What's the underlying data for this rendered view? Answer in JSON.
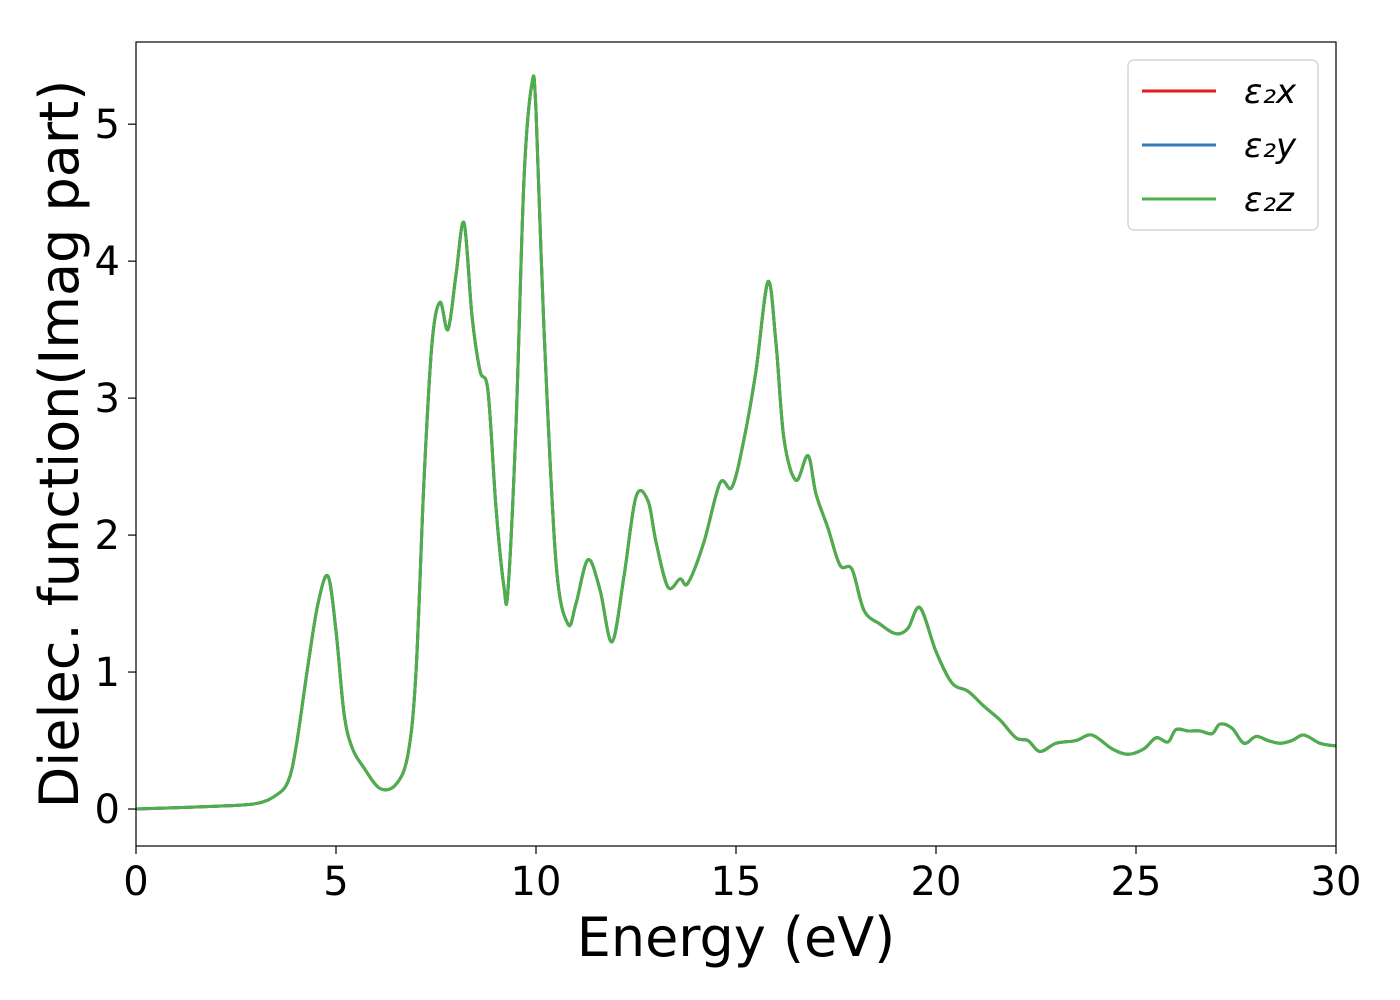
{
  "chart_data": {
    "type": "line",
    "xlabel": "Energy (eV)",
    "ylabel": "Dielec. function(Imag part)",
    "xlim": [
      0,
      30
    ],
    "ylim": [
      -0.27,
      5.6
    ],
    "x_ticks": [
      0,
      5,
      10,
      15,
      20,
      25,
      30
    ],
    "y_ticks": [
      0,
      1,
      2,
      3,
      4,
      5
    ],
    "grid": false,
    "legend_position": "top-right",
    "x": [
      0,
      2,
      3,
      3.5,
      3.8,
      4.0,
      4.3,
      4.55,
      4.8,
      5.0,
      5.2,
      5.4,
      5.7,
      6.1,
      6.5,
      6.8,
      7.0,
      7.2,
      7.4,
      7.6,
      7.8,
      8.0,
      8.2,
      8.4,
      8.6,
      8.8,
      9.0,
      9.2,
      9.3,
      9.5,
      9.7,
      9.9,
      10.0,
      10.2,
      10.5,
      10.8,
      11.0,
      11.3,
      11.6,
      11.9,
      12.2,
      12.5,
      12.8,
      13.0,
      13.3,
      13.6,
      13.8,
      14.2,
      14.6,
      14.9,
      15.2,
      15.5,
      15.8,
      16.0,
      16.2,
      16.5,
      16.8,
      17.0,
      17.3,
      17.6,
      17.9,
      18.2,
      18.6,
      19.0,
      19.3,
      19.6,
      20.0,
      20.4,
      20.8,
      21.2,
      21.6,
      22.0,
      22.3,
      22.6,
      23.0,
      23.5,
      23.9,
      24.4,
      24.8,
      25.2,
      25.5,
      25.8,
      26.0,
      26.3,
      26.6,
      26.9,
      27.1,
      27.4,
      27.7,
      28.0,
      28.3,
      28.6,
      28.9,
      29.2,
      29.6,
      30.0
    ],
    "series": [
      {
        "name": "ε₂x",
        "color": "#e41a1c",
        "values": [
          0.0,
          0.02,
          0.04,
          0.1,
          0.2,
          0.45,
          1.05,
          1.5,
          1.7,
          1.3,
          0.7,
          0.45,
          0.3,
          0.15,
          0.18,
          0.4,
          1.0,
          2.4,
          3.4,
          3.7,
          3.5,
          3.9,
          4.28,
          3.6,
          3.2,
          3.05,
          2.2,
          1.62,
          1.6,
          2.8,
          4.6,
          5.3,
          5.1,
          3.5,
          1.8,
          1.35,
          1.5,
          1.82,
          1.6,
          1.22,
          1.7,
          2.28,
          2.25,
          1.95,
          1.62,
          1.68,
          1.65,
          1.95,
          2.38,
          2.35,
          2.7,
          3.2,
          3.85,
          3.4,
          2.7,
          2.4,
          2.58,
          2.3,
          2.05,
          1.78,
          1.75,
          1.45,
          1.35,
          1.28,
          1.32,
          1.47,
          1.15,
          0.92,
          0.86,
          0.75,
          0.65,
          0.52,
          0.5,
          0.42,
          0.48,
          0.5,
          0.54,
          0.44,
          0.4,
          0.44,
          0.52,
          0.49,
          0.58,
          0.57,
          0.57,
          0.55,
          0.62,
          0.59,
          0.48,
          0.53,
          0.5,
          0.48,
          0.5,
          0.54,
          0.48,
          0.46
        ]
      },
      {
        "name": "ε₂y",
        "color": "#377eb8",
        "values": [
          0.0,
          0.02,
          0.04,
          0.1,
          0.2,
          0.45,
          1.05,
          1.5,
          1.7,
          1.3,
          0.7,
          0.45,
          0.3,
          0.15,
          0.18,
          0.4,
          1.0,
          2.4,
          3.4,
          3.7,
          3.5,
          3.9,
          4.28,
          3.6,
          3.2,
          3.05,
          2.2,
          1.62,
          1.6,
          2.8,
          4.6,
          5.3,
          5.1,
          3.5,
          1.8,
          1.35,
          1.5,
          1.82,
          1.6,
          1.22,
          1.7,
          2.28,
          2.25,
          1.95,
          1.62,
          1.68,
          1.65,
          1.95,
          2.38,
          2.35,
          2.7,
          3.2,
          3.85,
          3.4,
          2.7,
          2.4,
          2.58,
          2.3,
          2.05,
          1.78,
          1.75,
          1.45,
          1.35,
          1.28,
          1.32,
          1.47,
          1.15,
          0.92,
          0.86,
          0.75,
          0.65,
          0.52,
          0.5,
          0.42,
          0.48,
          0.5,
          0.54,
          0.44,
          0.4,
          0.44,
          0.52,
          0.49,
          0.58,
          0.57,
          0.57,
          0.55,
          0.62,
          0.59,
          0.48,
          0.53,
          0.5,
          0.48,
          0.5,
          0.54,
          0.48,
          0.46
        ]
      },
      {
        "name": "ε₂z",
        "color": "#4daf4a",
        "values": [
          0.0,
          0.02,
          0.04,
          0.1,
          0.2,
          0.45,
          1.05,
          1.5,
          1.7,
          1.3,
          0.7,
          0.45,
          0.3,
          0.15,
          0.18,
          0.4,
          1.0,
          2.4,
          3.4,
          3.7,
          3.5,
          3.9,
          4.28,
          3.6,
          3.2,
          3.05,
          2.2,
          1.62,
          1.6,
          2.8,
          4.6,
          5.3,
          5.1,
          3.5,
          1.8,
          1.35,
          1.5,
          1.82,
          1.6,
          1.22,
          1.7,
          2.28,
          2.25,
          1.95,
          1.62,
          1.68,
          1.65,
          1.95,
          2.38,
          2.35,
          2.7,
          3.2,
          3.85,
          3.4,
          2.7,
          2.4,
          2.58,
          2.3,
          2.05,
          1.78,
          1.75,
          1.45,
          1.35,
          1.28,
          1.32,
          1.47,
          1.15,
          0.92,
          0.86,
          0.75,
          0.65,
          0.52,
          0.5,
          0.42,
          0.48,
          0.5,
          0.54,
          0.44,
          0.4,
          0.44,
          0.52,
          0.49,
          0.58,
          0.57,
          0.57,
          0.55,
          0.62,
          0.59,
          0.48,
          0.53,
          0.5,
          0.48,
          0.5,
          0.54,
          0.48,
          0.46
        ]
      }
    ]
  }
}
